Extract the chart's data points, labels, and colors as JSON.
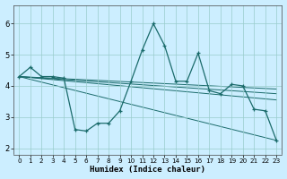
{
  "xlabel": "Humidex (Indice chaleur)",
  "bg_color": "#cceeff",
  "line_color": "#1a6b6b",
  "grid_color": "#99cccc",
  "xlim": [
    -0.5,
    23.5
  ],
  "ylim": [
    1.8,
    6.6
  ],
  "yticks": [
    2,
    3,
    4,
    5,
    6
  ],
  "xticks": [
    0,
    1,
    2,
    3,
    4,
    5,
    6,
    7,
    8,
    9,
    10,
    11,
    12,
    13,
    14,
    15,
    16,
    17,
    18,
    19,
    20,
    21,
    22,
    23
  ],
  "main_series": {
    "x": [
      0,
      1,
      2,
      3,
      4,
      5,
      6,
      7,
      8,
      9,
      10,
      11,
      12,
      13,
      14,
      15,
      16,
      17,
      18,
      19,
      20,
      21,
      22,
      23
    ],
    "y": [
      4.3,
      4.6,
      4.3,
      4.3,
      4.25,
      2.6,
      2.55,
      2.8,
      2.8,
      3.2,
      4.15,
      5.15,
      6.0,
      5.3,
      4.15,
      4.15,
      5.05,
      3.85,
      3.75,
      4.05,
      4.0,
      3.25,
      3.2,
      2.25
    ]
  },
  "trend_lines": [
    {
      "x": [
        0,
        23
      ],
      "y": [
        4.3,
        2.25
      ]
    },
    {
      "x": [
        0,
        23
      ],
      "y": [
        4.3,
        3.55
      ]
    },
    {
      "x": [
        0,
        23
      ],
      "y": [
        4.3,
        3.75
      ]
    },
    {
      "x": [
        0,
        23
      ],
      "y": [
        4.3,
        3.9
      ]
    }
  ]
}
